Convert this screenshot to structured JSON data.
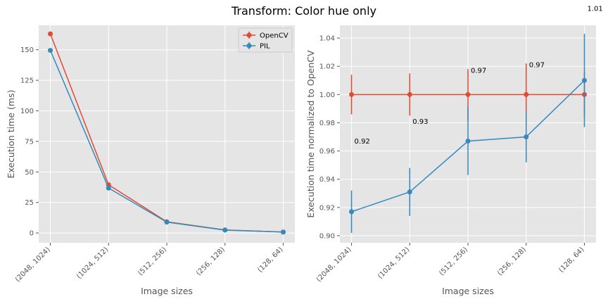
{
  "title": "Transform: Color hue only",
  "colors": {
    "opencv": "#E24A33",
    "pil": "#348ABD",
    "axes_bg": "#E5E5E5",
    "grid": "#FFFFFF"
  },
  "chart_data": [
    {
      "type": "line",
      "categories": [
        "(2048, 1024)",
        "(1024, 512)",
        "(512, 256)",
        "(256, 128)",
        "(128, 64)"
      ],
      "xlabel": "Image sizes",
      "ylabel": "Execution time (ms)",
      "ylim": [
        -8,
        170
      ],
      "yticks": [
        "0",
        "25",
        "50",
        "75",
        "100",
        "125",
        "150"
      ],
      "grid": true,
      "legend": "upper right",
      "series": [
        {
          "name": "OpenCV",
          "values": [
            163.0,
            39.5,
            9.2,
            2.5,
            0.8
          ],
          "errors": [
            1.5,
            0.8,
            0.2,
            0.1,
            0.05
          ]
        },
        {
          "name": "PIL",
          "values": [
            149.5,
            36.8,
            8.9,
            2.4,
            0.8
          ],
          "errors": [
            1.5,
            0.8,
            0.2,
            0.1,
            0.05
          ]
        }
      ]
    },
    {
      "type": "line",
      "categories": [
        "(2048, 1024)",
        "(1024, 512)",
        "(512, 256)",
        "(256, 128)",
        "(128, 64)"
      ],
      "xlabel": "Image sizes",
      "ylabel": "Execution time normalized to OpenCV",
      "ylim": [
        0.895,
        1.049
      ],
      "yticks": [
        "0.90",
        "0.92",
        "0.94",
        "0.96",
        "0.98",
        "1.00",
        "1.02",
        "1.04"
      ],
      "grid": true,
      "series": [
        {
          "values": [
            1.0,
            1.0,
            1.0,
            1.0,
            1.0
          ],
          "errors": [
            0.014,
            0.015,
            0.018,
            0.022,
            0.016
          ]
        },
        {
          "values": [
            0.917,
            0.931,
            0.967,
            0.97,
            1.01
          ],
          "errors": [
            0.015,
            0.017,
            0.024,
            0.018,
            0.033
          ]
        }
      ],
      "annotations": [
        {
          "text": "0.92",
          "x": 0,
          "y": 0.967
        },
        {
          "text": "0.93",
          "x": 1,
          "y": 0.981
        },
        {
          "text": "0.97",
          "x": 2,
          "y": 1.017
        },
        {
          "text": "0.97",
          "x": 3,
          "y": 1.021
        },
        {
          "text": "1.01",
          "x": 4,
          "y": 1.061
        }
      ]
    }
  ]
}
